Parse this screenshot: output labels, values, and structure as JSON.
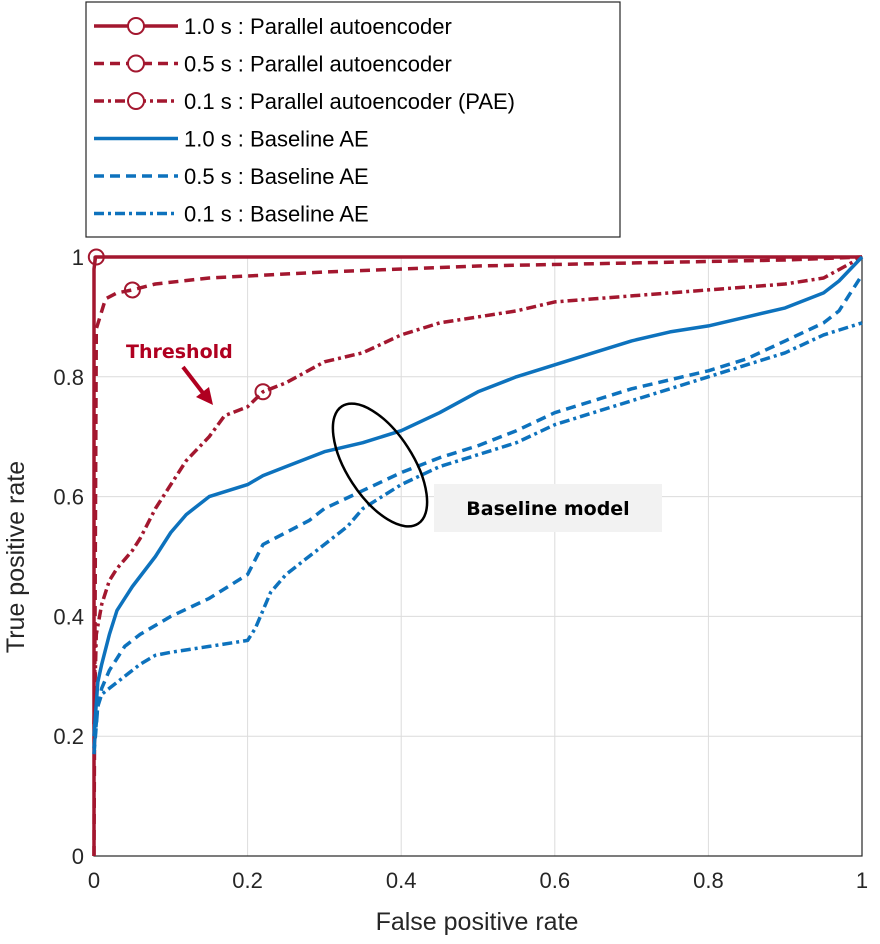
{
  "chart_data": {
    "type": "line",
    "title": "",
    "xlabel": "False positive rate",
    "ylabel": "True positive rate",
    "xlim": [
      0,
      1
    ],
    "ylim": [
      0,
      1
    ],
    "xticks": [
      "0",
      "0.2",
      "0.4",
      "0.6",
      "0.8",
      "1"
    ],
    "yticks": [
      "0",
      "0.2",
      "0.4",
      "0.6",
      "0.8",
      "1"
    ],
    "grid": true,
    "legend_position": "above-left",
    "series": [
      {
        "name": "1.0 s : Parallel autoencoder",
        "color": "#a3172f",
        "style": "solid",
        "marker": "circle",
        "x": [
          0,
          0,
          0.002,
          0.01,
          1
        ],
        "y": [
          0,
          0.98,
          1.0,
          1.0,
          1.0
        ],
        "threshold": [
          0.003,
          1.0
        ]
      },
      {
        "name": "0.5 s : Parallel autoencoder",
        "color": "#a3172f",
        "style": "dashed",
        "marker": "circle",
        "x": [
          0,
          0.003,
          0.015,
          0.03,
          0.05,
          0.08,
          0.15,
          0.3,
          0.5,
          0.7,
          0.9,
          1
        ],
        "y": [
          0,
          0.88,
          0.93,
          0.94,
          0.945,
          0.955,
          0.965,
          0.975,
          0.985,
          0.99,
          0.995,
          1.0
        ],
        "threshold": [
          0.05,
          0.945
        ]
      },
      {
        "name": "0.1 s : Parallel autoencoder (PAE)",
        "color": "#a3172f",
        "style": "dashdot",
        "marker": "circle",
        "x": [
          0,
          0.003,
          0.01,
          0.02,
          0.03,
          0.05,
          0.06,
          0.08,
          0.1,
          0.12,
          0.15,
          0.17,
          0.2,
          0.22,
          0.25,
          0.3,
          0.35,
          0.4,
          0.45,
          0.5,
          0.55,
          0.6,
          0.65,
          0.7,
          0.75,
          0.8,
          0.85,
          0.9,
          0.95,
          1
        ],
        "y": [
          0.22,
          0.37,
          0.42,
          0.46,
          0.48,
          0.51,
          0.53,
          0.58,
          0.62,
          0.66,
          0.7,
          0.735,
          0.75,
          0.775,
          0.79,
          0.825,
          0.84,
          0.87,
          0.89,
          0.9,
          0.91,
          0.925,
          0.93,
          0.935,
          0.94,
          0.945,
          0.95,
          0.955,
          0.965,
          1.0
        ],
        "threshold": [
          0.22,
          0.775
        ]
      },
      {
        "name": "1.0 s : Baseline AE",
        "color": "#0d72bd",
        "style": "solid",
        "marker": "none",
        "x": [
          0,
          0.005,
          0.01,
          0.02,
          0.03,
          0.05,
          0.08,
          0.1,
          0.12,
          0.15,
          0.2,
          0.22,
          0.25,
          0.3,
          0.35,
          0.4,
          0.45,
          0.5,
          0.55,
          0.6,
          0.65,
          0.7,
          0.75,
          0.8,
          0.85,
          0.9,
          0.95,
          0.97,
          1
        ],
        "y": [
          0.2,
          0.29,
          0.32,
          0.37,
          0.41,
          0.45,
          0.5,
          0.54,
          0.57,
          0.6,
          0.62,
          0.635,
          0.65,
          0.675,
          0.69,
          0.71,
          0.74,
          0.775,
          0.8,
          0.82,
          0.84,
          0.86,
          0.875,
          0.885,
          0.9,
          0.915,
          0.94,
          0.96,
          1.0
        ]
      },
      {
        "name": "0.5 s : Baseline AE",
        "color": "#0d72bd",
        "style": "dashed",
        "marker": "none",
        "x": [
          0,
          0.005,
          0.01,
          0.02,
          0.04,
          0.06,
          0.1,
          0.15,
          0.2,
          0.22,
          0.25,
          0.28,
          0.3,
          0.35,
          0.4,
          0.45,
          0.5,
          0.55,
          0.6,
          0.65,
          0.7,
          0.75,
          0.8,
          0.85,
          0.9,
          0.95,
          0.97,
          1
        ],
        "y": [
          0.17,
          0.25,
          0.28,
          0.31,
          0.35,
          0.37,
          0.4,
          0.43,
          0.47,
          0.52,
          0.54,
          0.56,
          0.58,
          0.61,
          0.64,
          0.665,
          0.685,
          0.71,
          0.74,
          0.76,
          0.78,
          0.795,
          0.81,
          0.83,
          0.86,
          0.89,
          0.91,
          0.97
        ]
      },
      {
        "name": "0.1 s : Baseline AE",
        "color": "#0d72bd",
        "style": "dashdot",
        "marker": "none",
        "x": [
          0,
          0.005,
          0.01,
          0.02,
          0.04,
          0.06,
          0.08,
          0.1,
          0.15,
          0.2,
          0.21,
          0.23,
          0.25,
          0.28,
          0.3,
          0.33,
          0.35,
          0.4,
          0.45,
          0.5,
          0.55,
          0.6,
          0.65,
          0.7,
          0.75,
          0.8,
          0.85,
          0.9,
          0.95,
          1
        ],
        "y": [
          0.18,
          0.25,
          0.27,
          0.28,
          0.3,
          0.32,
          0.335,
          0.34,
          0.35,
          0.36,
          0.38,
          0.44,
          0.47,
          0.5,
          0.52,
          0.55,
          0.58,
          0.62,
          0.65,
          0.67,
          0.69,
          0.72,
          0.74,
          0.76,
          0.78,
          0.8,
          0.82,
          0.84,
          0.87,
          0.89
        ]
      }
    ],
    "annotations": [
      {
        "text": "Threshold",
        "color": "#b00020"
      },
      {
        "text": "Baseline model",
        "color": "#000000"
      }
    ]
  }
}
